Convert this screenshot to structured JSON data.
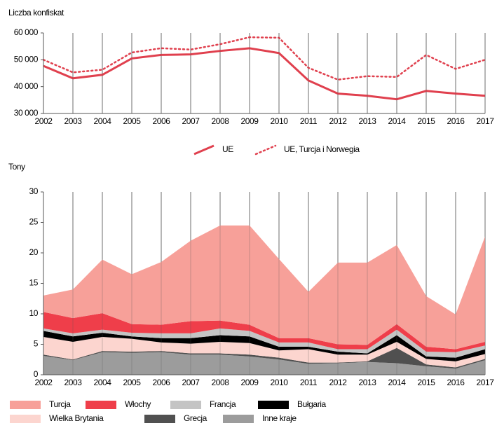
{
  "chart_data": [
    {
      "type": "line",
      "y_label": "Liczba konfiskat",
      "categories": [
        "2002",
        "2003",
        "2004",
        "2005",
        "2006",
        "2007",
        "2008",
        "2009",
        "2010",
        "2011",
        "2012",
        "2013",
        "2014",
        "2015",
        "2016",
        "2017"
      ],
      "ylim": [
        30000,
        60000
      ],
      "yticks": [
        {
          "value": 30000,
          "label": "30 000"
        },
        {
          "value": 40000,
          "label": "40 000"
        },
        {
          "value": 50000,
          "label": "50 000"
        },
        {
          "value": 60000,
          "label": "60 000"
        }
      ],
      "grid": true,
      "series": [
        {
          "name": "UE",
          "color": "#e0404e",
          "dash": "solid",
          "values": [
            47700,
            43100,
            44400,
            50500,
            51800,
            52000,
            53300,
            54300,
            52500,
            42300,
            37400,
            36600,
            35300,
            38400,
            37400,
            36600
          ]
        },
        {
          "name": "UE, Turcja i Norwegia",
          "color": "#e0404e",
          "dash": "dotted",
          "values": [
            50000,
            45300,
            46300,
            52700,
            54300,
            53800,
            55800,
            58400,
            58200,
            47000,
            42600,
            43900,
            43600,
            51800,
            46600,
            50000
          ]
        }
      ]
    },
    {
      "type": "stacked_area",
      "y_label": "Tony",
      "categories": [
        "2002",
        "2003",
        "2004",
        "2005",
        "2006",
        "2007",
        "2008",
        "2009",
        "2010",
        "2011",
        "2012",
        "2013",
        "2014",
        "2015",
        "2016",
        "2017"
      ],
      "ylim": [
        0,
        30
      ],
      "yticks": [
        0,
        5,
        10,
        15,
        20,
        25,
        30
      ],
      "grid": true,
      "series": [
        {
          "name": "Turcja",
          "color": "#f7a099",
          "values": [
            2.7,
            4.7,
            8.8,
            8.2,
            10.3,
            13.2,
            15.6,
            16.3,
            13.0,
            7.6,
            13.4,
            13.5,
            13.0,
            8.3,
            5.7,
            17.3
          ]
        },
        {
          "name": "Włochy",
          "color": "#ef3e4a",
          "values": [
            2.7,
            2.5,
            2.7,
            1.4,
            1.4,
            2.0,
            1.3,
            1.0,
            0.7,
            0.7,
            0.8,
            0.7,
            0.9,
            0.8,
            0.5,
            0.6
          ]
        },
        {
          "name": "Francja",
          "color": "#c4c4c4",
          "values": [
            0.4,
            0.5,
            0.5,
            0.6,
            0.8,
            0.8,
            1.1,
            0.9,
            0.7,
            0.7,
            0.4,
            0.7,
            0.9,
            0.8,
            0.9,
            0.6
          ]
        },
        {
          "name": "Bułgaria",
          "color": "#000000",
          "values": [
            1.0,
            0.9,
            0.7,
            0.4,
            0.7,
            0.9,
            1.1,
            1.1,
            0.6,
            0.4,
            0.5,
            0.2,
            1.1,
            0.4,
            0.6,
            0.8
          ]
        },
        {
          "name": "Wielka Brytania",
          "color": "#fcd5cf",
          "values": [
            2.9,
            2.9,
            2.3,
            2.1,
            1.4,
            1.6,
            1.9,
            1.9,
            1.2,
            2.2,
            1.3,
            1.1,
            1.0,
            0.9,
            1.0,
            0.8
          ]
        },
        {
          "name": "Grecja",
          "color": "#505050",
          "values": [
            0.2,
            0.1,
            0.2,
            0.2,
            0.2,
            0.2,
            0.2,
            0.3,
            0.3,
            0.2,
            0.1,
            0.1,
            2.5,
            0.3,
            0.2,
            0.2
          ]
        },
        {
          "name": "Inne kraje",
          "color": "#9c9c9c",
          "values": [
            3.1,
            2.4,
            3.7,
            3.6,
            3.7,
            3.3,
            3.3,
            3.0,
            2.5,
            1.8,
            1.9,
            2.1,
            1.9,
            1.4,
            1.0,
            2.4
          ]
        }
      ]
    }
  ]
}
